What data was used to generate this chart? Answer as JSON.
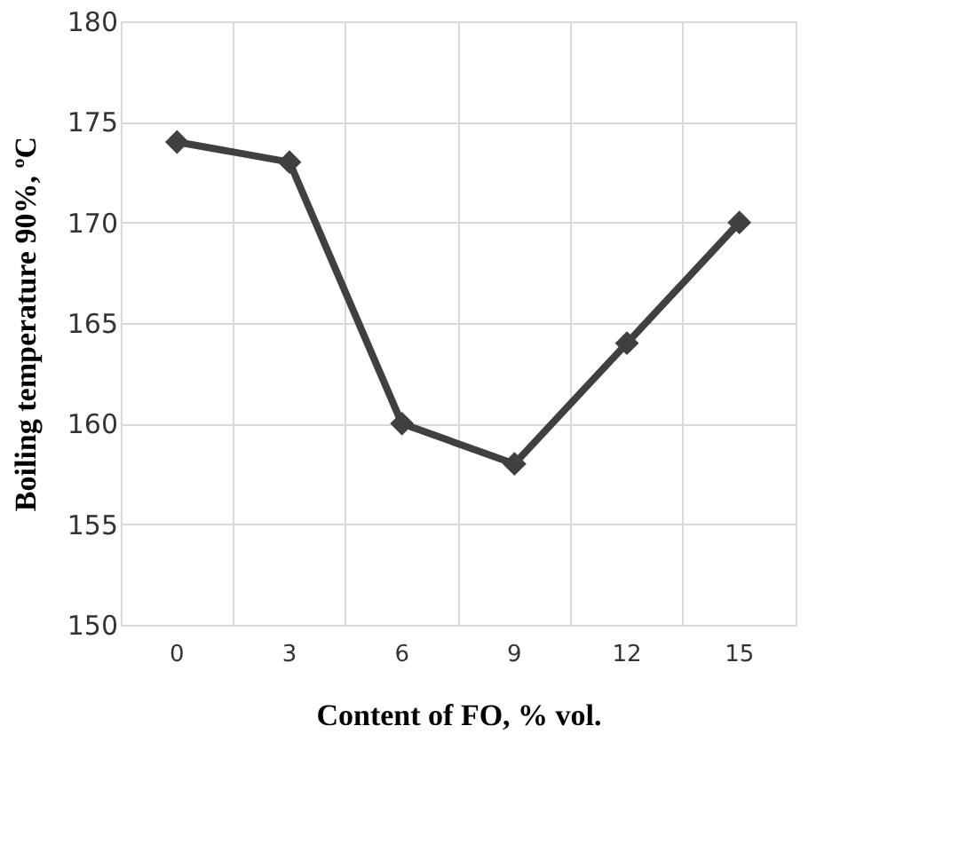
{
  "chart_data": {
    "type": "line",
    "xlabel": "Content of FO, % vol.",
    "ylabel": "Boiling temperature 90%, ºC",
    "categories": [
      "0",
      "3",
      "6",
      "9",
      "12",
      "15"
    ],
    "series": [
      {
        "color": "#404040",
        "values": [
          174,
          173,
          160,
          158,
          164,
          170
        ]
      }
    ],
    "ylim": [
      150,
      180
    ],
    "yticks": [
      150,
      155,
      160,
      165,
      170,
      175,
      180
    ],
    "grid": true,
    "marker": "diamond",
    "line_style": "solid"
  }
}
